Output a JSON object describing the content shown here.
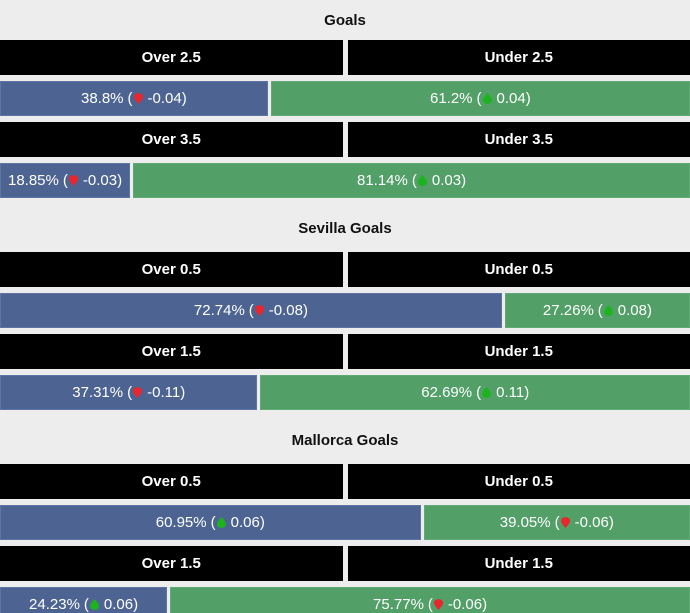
{
  "punct": {
    "open": "(",
    "close": ")"
  },
  "colors": {
    "page_bg": "#ededed",
    "header_bg": "#000000",
    "over_bar": "#4d6493",
    "under_bar": "#529f68",
    "trend_up": "#1db31d",
    "trend_down": "#e8262d",
    "bar_text": "#ffffff",
    "title_text": "#111111"
  },
  "sections": [
    {
      "title": "Goals",
      "rows": [
        {
          "over_label": "Over 2.5",
          "under_label": "Under 2.5",
          "left": {
            "pct": "38.8%",
            "change": "-0.04",
            "dir": "down",
            "width": 38.8
          },
          "right": {
            "pct": "61.2%",
            "change": "0.04",
            "dir": "up",
            "width": 61.2
          }
        },
        {
          "over_label": "Over 3.5",
          "under_label": "Under 3.5",
          "left": {
            "pct": "18.85%",
            "change": "-0.03",
            "dir": "down",
            "width": 18.85
          },
          "right": {
            "pct": "81.14%",
            "change": "0.03",
            "dir": "up",
            "width": 81.14
          }
        }
      ]
    },
    {
      "title": "Sevilla Goals",
      "rows": [
        {
          "over_label": "Over 0.5",
          "under_label": "Under 0.5",
          "left": {
            "pct": "72.74%",
            "change": "-0.08",
            "dir": "down",
            "width": 72.74
          },
          "right": {
            "pct": "27.26%",
            "change": "0.08",
            "dir": "up",
            "width": 27.26
          }
        },
        {
          "over_label": "Over 1.5",
          "under_label": "Under 1.5",
          "left": {
            "pct": "37.31%",
            "change": "-0.11",
            "dir": "down",
            "width": 37.31
          },
          "right": {
            "pct": "62.69%",
            "change": "0.11",
            "dir": "up",
            "width": 62.69
          }
        }
      ]
    },
    {
      "title": "Mallorca Goals",
      "rows": [
        {
          "over_label": "Over 0.5",
          "under_label": "Under 0.5",
          "left": {
            "pct": "60.95%",
            "change": "0.06",
            "dir": "up",
            "width": 60.95
          },
          "right": {
            "pct": "39.05%",
            "change": "-0.06",
            "dir": "down",
            "width": 39.05
          }
        },
        {
          "over_label": "Over 1.5",
          "under_label": "Under 1.5",
          "left": {
            "pct": "24.23%",
            "change": "0.06",
            "dir": "up",
            "width": 24.23
          },
          "right": {
            "pct": "75.77%",
            "change": "-0.06",
            "dir": "down",
            "width": 75.77
          }
        }
      ]
    }
  ],
  "chart_data": [
    {
      "type": "bar",
      "title": "Goals",
      "categories": [
        "Over 2.5",
        "Under 2.5",
        "Over 3.5",
        "Under 3.5"
      ],
      "values": [
        38.8,
        61.2,
        18.85,
        81.14
      ],
      "changes": [
        -0.04,
        0.04,
        -0.03,
        0.03
      ],
      "xlabel": "",
      "ylabel": "",
      "xlim": [
        0,
        100
      ]
    },
    {
      "type": "bar",
      "title": "Sevilla Goals",
      "categories": [
        "Over 0.5",
        "Under 0.5",
        "Over 1.5",
        "Under 1.5"
      ],
      "values": [
        72.74,
        27.26,
        37.31,
        62.69
      ],
      "changes": [
        -0.08,
        0.08,
        -0.11,
        0.11
      ],
      "xlabel": "",
      "ylabel": "",
      "xlim": [
        0,
        100
      ]
    },
    {
      "type": "bar",
      "title": "Mallorca Goals",
      "categories": [
        "Over 0.5",
        "Under 0.5",
        "Over 1.5",
        "Under 1.5"
      ],
      "values": [
        60.95,
        39.05,
        24.23,
        75.77
      ],
      "changes": [
        0.06,
        -0.06,
        0.06,
        -0.06
      ],
      "xlabel": "",
      "ylabel": "",
      "xlim": [
        0,
        100
      ]
    }
  ]
}
